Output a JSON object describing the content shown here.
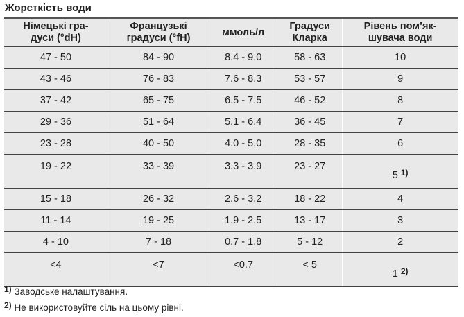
{
  "title": "Жорсткість води",
  "headers": [
    "Німецькі гра-\nдуси (°dH)",
    "Французькі\nградуси (°fH)",
    "ммоль/л",
    "Градуси\nКларка",
    "Рівень пом’як-\nшувача води"
  ],
  "rows": [
    [
      "47 - 50",
      "84 - 90",
      "8.4 - 9.0",
      "58 - 63",
      "10",
      ""
    ],
    [
      "43 - 46",
      "76 - 83",
      "7.6 - 8.3",
      "53 - 57",
      "9",
      ""
    ],
    [
      "37 - 42",
      "65 - 75",
      "6.5 - 7.5",
      "46 - 52",
      "8",
      ""
    ],
    [
      "29 - 36",
      "51 - 64",
      "5.1 - 6.4",
      "36 - 45",
      "7",
      ""
    ],
    [
      "23 - 28",
      "40 - 50",
      "4.0 - 5.0",
      "28 - 35",
      "6",
      ""
    ],
    [
      "19 - 22",
      "33 - 39",
      "3.3 - 3.9",
      "23 - 27",
      "5",
      "1)"
    ],
    [
      "15 - 18",
      "26 - 32",
      "2.6 - 3.2",
      "18 - 22",
      "4",
      ""
    ],
    [
      "11 - 14",
      "19 - 25",
      "1.9 - 2.5",
      "13 - 17",
      "3",
      ""
    ],
    [
      "4 - 10",
      "7 - 18",
      "0.7 - 1.8",
      "5 - 12",
      "2",
      ""
    ],
    [
      "<4",
      "<7",
      "<0.7",
      "< 5",
      "1",
      "2)"
    ]
  ],
  "footnotes": [
    {
      "mark": "1)",
      "text": "Заводське налаштування."
    },
    {
      "mark": "2)",
      "text": "Не використовуйте сіль на цьому рівні."
    }
  ]
}
